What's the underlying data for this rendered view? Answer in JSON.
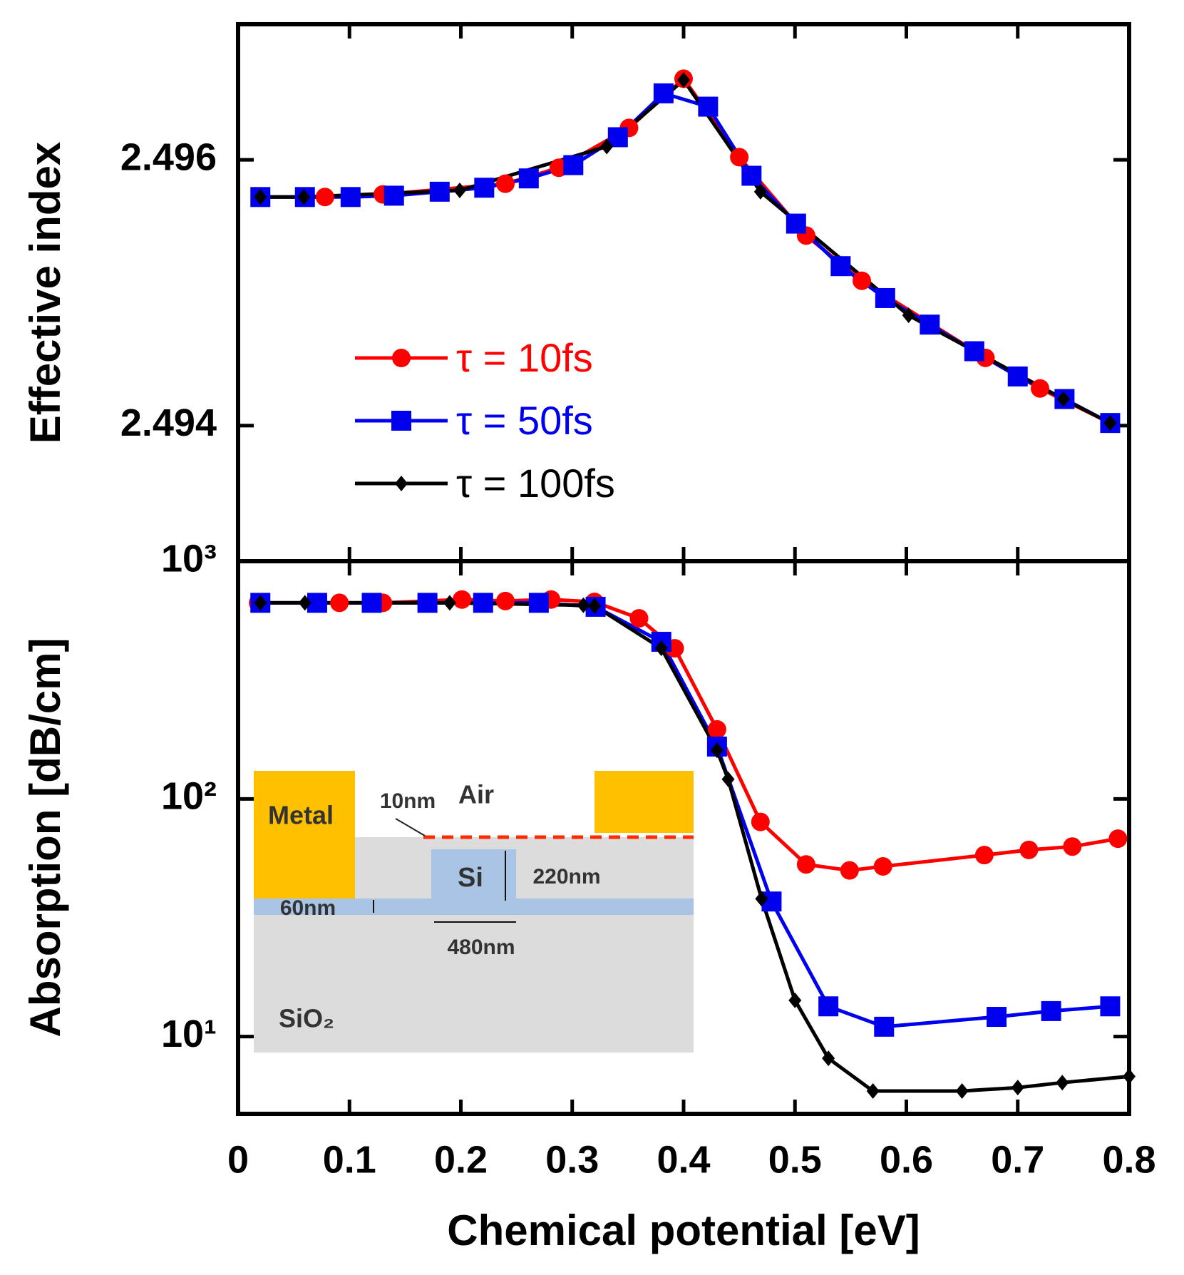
{
  "chart_data": [
    {
      "type": "line",
      "ylabel": "Effective index",
      "xlim": [
        0,
        0.8
      ],
      "xticks": [
        0,
        0.1,
        0.2,
        0.3,
        0.4,
        0.5,
        0.6,
        0.7,
        0.8
      ],
      "show_xtick_labels": false,
      "ylim": [
        2.49298,
        2.49702
      ],
      "yticks": [
        2.494,
        2.496
      ],
      "legend": "center-left",
      "series": [
        {
          "name": "τ = 10fs",
          "color": "#ff0000",
          "marker": "circle",
          "x": [
            0.02,
            0.078,
            0.13,
            0.24,
            0.288,
            0.351,
            0.4,
            0.45,
            0.51,
            0.56,
            0.671,
            0.72,
            0.783
          ],
          "values": [
            2.49572,
            2.49572,
            2.49574,
            2.49582,
            2.49594,
            2.49624,
            2.49661,
            2.49602,
            2.49543,
            2.49509,
            2.49451,
            2.49428,
            2.49402
          ]
        },
        {
          "name": "τ = 50fs",
          "color": "#0000ee",
          "marker": "square",
          "x": [
            0.02,
            0.06,
            0.101,
            0.14,
            0.181,
            0.221,
            0.261,
            0.301,
            0.341,
            0.382,
            0.422,
            0.461,
            0.501,
            0.541,
            0.581,
            0.621,
            0.661,
            0.7,
            0.742,
            0.783
          ],
          "values": [
            2.49572,
            2.49572,
            2.49572,
            2.49573,
            2.49576,
            2.49579,
            2.49586,
            2.49596,
            2.49617,
            2.4965,
            2.4964,
            2.49588,
            2.49552,
            2.4952,
            2.49496,
            2.49476,
            2.49456,
            2.49437,
            2.4942,
            2.49402
          ]
        },
        {
          "name": "τ = 100fs",
          "color": "#000000",
          "marker": "diamond",
          "x": [
            0.02,
            0.059,
            0.199,
            0.331,
            0.4,
            0.469,
            0.602,
            0.741,
            0.783
          ],
          "values": [
            2.49572,
            2.49572,
            2.49577,
            2.4961,
            2.4966,
            2.49576,
            2.49483,
            2.4942,
            2.49402
          ]
        }
      ]
    },
    {
      "type": "line",
      "xlabel": "Chemical potential [eV]",
      "ylabel": "Absorption [dB/cm]",
      "xlim": [
        0,
        0.8
      ],
      "xticks": [
        0,
        0.1,
        0.2,
        0.3,
        0.4,
        0.5,
        0.6,
        0.7,
        0.8
      ],
      "ylim": [
        4.73,
        1000
      ],
      "log_y": true,
      "yticks": [
        {
          "value": 10,
          "label": "10¹"
        },
        {
          "value": 100,
          "label": "10²"
        },
        {
          "value": 1000,
          "label": "10³"
        }
      ],
      "series": [
        {
          "color": "#ff0000",
          "marker": "circle",
          "x": [
            0.018,
            0.091,
            0.13,
            0.201,
            0.24,
            0.281,
            0.32,
            0.36,
            0.392,
            0.43,
            0.469,
            0.51,
            0.549,
            0.579,
            0.67,
            0.71,
            0.749,
            0.79
          ],
          "values": [
            668,
            668,
            668,
            690,
            680,
            690,
            674,
            575,
            430,
            196,
            80,
            53,
            50,
            52,
            58,
            61,
            63,
            68
          ]
        },
        {
          "color": "#0000ee",
          "marker": "square",
          "x": [
            0.02,
            0.071,
            0.12,
            0.17,
            0.22,
            0.27,
            0.321,
            0.38,
            0.43,
            0.479,
            0.53,
            0.58,
            0.681,
            0.73,
            0.783
          ],
          "values": [
            668,
            668,
            668,
            668,
            668,
            668,
            643,
            458,
            166,
            37,
            13.4,
            11.0,
            12.1,
            12.8,
            13.4
          ]
        },
        {
          "color": "#000000",
          "marker": "diamond",
          "x": [
            0.02,
            0.06,
            0.19,
            0.31,
            0.32,
            0.38,
            0.43,
            0.44,
            0.47,
            0.5,
            0.53,
            0.57,
            0.65,
            0.7,
            0.74,
            0.8
          ],
          "values": [
            668,
            668,
            668,
            653,
            649,
            430,
            160,
            121,
            38,
            14.2,
            8.1,
            5.9,
            5.9,
            6.1,
            6.4,
            6.8
          ]
        }
      ],
      "inset": {
        "metal": "Metal",
        "air": "Air",
        "gap": "10nm",
        "si": "Si",
        "height": "220nm",
        "slab": "60nm",
        "width": "480nm",
        "substrate": "SiO₂"
      }
    }
  ]
}
